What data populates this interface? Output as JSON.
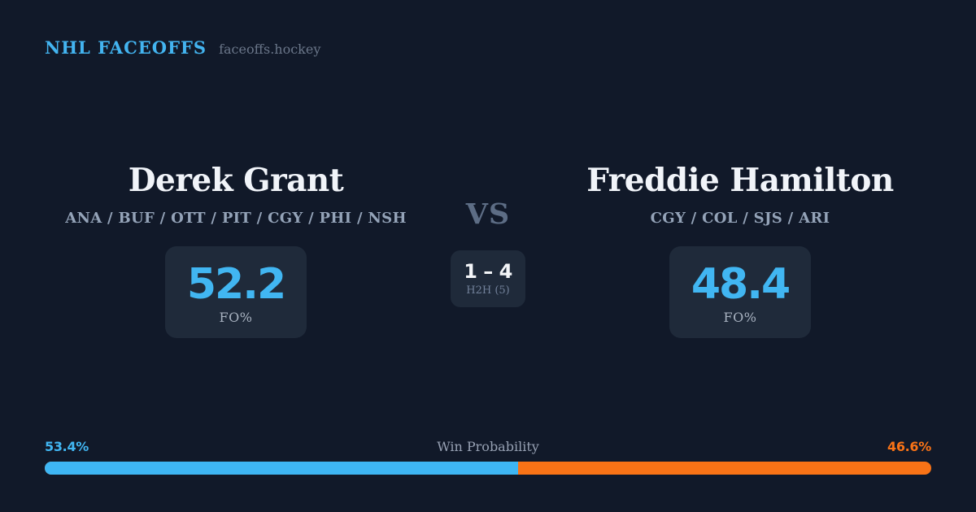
{
  "header": {
    "brand": "NHL FACEOFFS",
    "site": "faceoffs.hockey"
  },
  "players": {
    "left": {
      "name": "Derek Grant",
      "teams": "ANA / BUF / OTT / PIT / CGY / PHI / NSH",
      "fo_pct": "52.2",
      "stat_label": "FO%"
    },
    "right": {
      "name": "Freddie Hamilton",
      "teams": "CGY / COL / SJS / ARI",
      "fo_pct": "48.4",
      "stat_label": "FO%"
    }
  },
  "matchup": {
    "vs_label": "VS",
    "h2h_score": "1 – 4",
    "h2h_label": "H2H (5)"
  },
  "win_probability": {
    "label": "Win Probability",
    "left_pct": "53.4%",
    "right_pct": "46.6%",
    "left_value": 53.4,
    "right_value": 46.6
  },
  "colors": {
    "background": "#111929",
    "panel": "#1f2a3a",
    "accent_blue": "#41b6f2",
    "accent_orange": "#f97316",
    "name_white": "#f1f4f9",
    "muted_text": "#94a3b8",
    "vs_gray": "#5d6d85"
  }
}
